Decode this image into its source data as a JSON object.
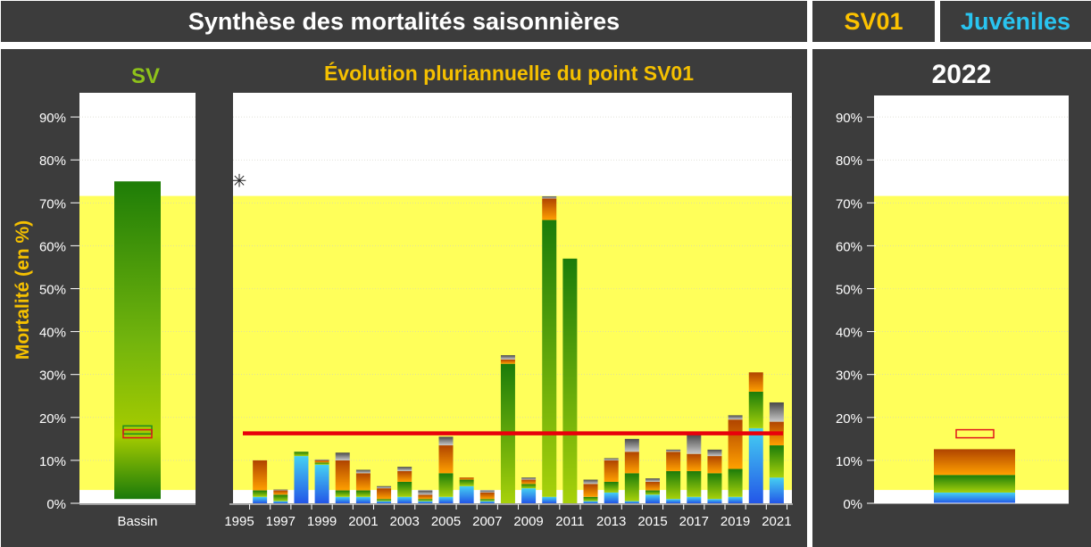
{
  "header": {
    "title": "Synthèse des mortalités saisonnières",
    "site": "SV01",
    "stage": "Juvéniles"
  },
  "colors": {
    "panel": "#3c3c3c",
    "site": "#fcc200",
    "stage": "#29c4f0",
    "sv_title": "#8ec21a",
    "chart_title": "#f5c000",
    "ylabel": "#f5c000",
    "yellow_band": "#ffff5a",
    "reference_line": "#e8000b"
  },
  "chart_data": [
    {
      "type": "bar",
      "title": "SV",
      "ylabel": "Mortalité (en %)",
      "ylim": [
        0,
        95
      ],
      "yticks": [
        "0%",
        "10%",
        "20%",
        "30%",
        "40%",
        "50%",
        "60%",
        "70%",
        "80%",
        "90%"
      ],
      "band": [
        3.1,
        71.6
      ],
      "categories": [
        "Bassin"
      ],
      "bar": {
        "bottom": 1,
        "top": 75
      },
      "markers": {
        "green_box": 17.2,
        "red_box": 16.3
      }
    },
    {
      "type": "bar",
      "stacked": true,
      "title": "Évolution pluriannuelle du point SV01",
      "ylim": [
        0,
        95
      ],
      "band": [
        3.1,
        71.6
      ],
      "x": [
        1995,
        1996,
        1997,
        1998,
        1999,
        2000,
        2001,
        2002,
        2003,
        2004,
        2005,
        2006,
        2007,
        2008,
        2009,
        2010,
        2011,
        2012,
        2013,
        2014,
        2015,
        2016,
        2017,
        2018,
        2019,
        2020,
        2021
      ],
      "xticks": [
        "1995",
        "1997",
        "1999",
        "2001",
        "2003",
        "2005",
        "2007",
        "2009",
        "2011",
        "2013",
        "2015",
        "2017",
        "2019",
        "2021"
      ],
      "series": [
        {
          "values": [
            0,
            1.5,
            0.5,
            11,
            9,
            1.5,
            1.5,
            0.5,
            1.5,
            0.5,
            1.5,
            4,
            0.5,
            0,
            3.5,
            1.5,
            0,
            0.5,
            2.5,
            0.5,
            2,
            1,
            1.5,
            1,
            1.5,
            17.5,
            6
          ]
        },
        {
          "values": [
            0,
            1.5,
            1.5,
            1,
            0.5,
            1.5,
            1.5,
            0.5,
            3.5,
            0.5,
            5.5,
            1.5,
            0.5,
            32.5,
            1,
            64.5,
            57,
            1,
            2.5,
            6.5,
            1,
            6.5,
            6,
            6,
            6.5,
            8.5,
            7.5
          ]
        },
        {
          "values": [
            0,
            7,
            1,
            0,
            0.5,
            7,
            4,
            2.5,
            2.5,
            1,
            6.5,
            0.5,
            1.5,
            1,
            1,
            5,
            0,
            3,
            5,
            5,
            2,
            4.5,
            4,
            4,
            11.5,
            4.5,
            5.5
          ]
        },
        {
          "values": [
            0,
            0,
            0.2,
            0,
            0.2,
            1.8,
            0.8,
            0.5,
            1,
            1,
            2,
            0,
            0.5,
            1,
            0.5,
            0.5,
            0,
            1,
            0.5,
            3,
            0.8,
            0.5,
            4.5,
            1.5,
            1,
            0,
            4.5
          ]
        },
        {
          "values": [
            0,
            0,
            0,
            0,
            0,
            0,
            0,
            0,
            0,
            0,
            0,
            0,
            0,
            0,
            0,
            0,
            0,
            0,
            0,
            0,
            0,
            0,
            0,
            0,
            0,
            0,
            0
          ]
        }
      ],
      "outlier": {
        "x": 1995,
        "y": 75.2
      },
      "reference_line": 16.3
    },
    {
      "type": "bar",
      "stacked": true,
      "title": "2022",
      "ylim": [
        0,
        95
      ],
      "yticks": [
        "0%",
        "10%",
        "20%",
        "30%",
        "40%",
        "50%",
        "60%",
        "70%",
        "80%",
        "90%"
      ],
      "band": [
        3.1,
        71.6
      ],
      "bar_segments": [
        {
          "from": 0,
          "to": 2.5
        },
        {
          "from": 2.5,
          "to": 6.6
        },
        {
          "from": 6.6,
          "to": 12.6
        }
      ],
      "marker": {
        "red_box": 16.3
      }
    }
  ]
}
